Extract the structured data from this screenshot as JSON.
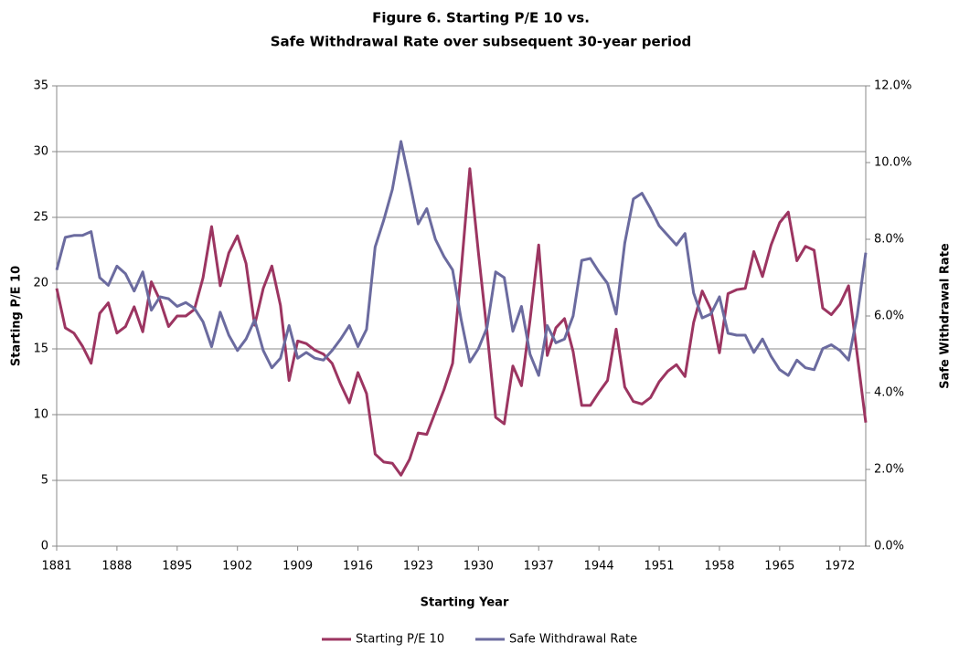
{
  "chart_data": {
    "type": "line",
    "title": "Figure 6.  Starting P/E 10 vs.",
    "subtitle": "Safe Withdrawal Rate over subsequent 30-year period",
    "x_label": "Starting Year",
    "y_label": "Starting P/E 10",
    "y2_label": "Safe Withdrawal Rate",
    "x": [
      1881,
      1882,
      1883,
      1884,
      1885,
      1886,
      1887,
      1888,
      1889,
      1890,
      1891,
      1892,
      1893,
      1894,
      1895,
      1896,
      1897,
      1898,
      1899,
      1900,
      1901,
      1902,
      1903,
      1904,
      1905,
      1906,
      1907,
      1908,
      1909,
      1910,
      1911,
      1912,
      1913,
      1914,
      1915,
      1916,
      1917,
      1918,
      1919,
      1920,
      1921,
      1922,
      1923,
      1924,
      1925,
      1926,
      1927,
      1928,
      1929,
      1930,
      1931,
      1932,
      1933,
      1934,
      1935,
      1936,
      1937,
      1938,
      1939,
      1940,
      1941,
      1942,
      1943,
      1944,
      1945,
      1946,
      1947,
      1948,
      1949,
      1950,
      1951,
      1952,
      1953,
      1954,
      1955,
      1956,
      1957,
      1958,
      1959,
      1960,
      1961,
      1962,
      1963,
      1964,
      1965,
      1966,
      1967,
      1968,
      1969,
      1970,
      1971,
      1972,
      1973,
      1974,
      1975
    ],
    "xlim": [
      1881,
      1975
    ],
    "xticks": [
      1881,
      1888,
      1895,
      1902,
      1909,
      1916,
      1923,
      1930,
      1937,
      1944,
      1951,
      1958,
      1965,
      1972
    ],
    "ylim": [
      0,
      35
    ],
    "yticks": [
      0,
      5,
      10,
      15,
      20,
      25,
      30,
      35
    ],
    "y2lim": [
      0,
      12
    ],
    "y2ticks": [
      {
        "value": 0,
        "label": "0.0%"
      },
      {
        "value": 2,
        "label": "2.0%"
      },
      {
        "value": 4,
        "label": "4.0%"
      },
      {
        "value": 6,
        "label": "6.0%"
      },
      {
        "value": 8,
        "label": "8.0%"
      },
      {
        "value": 10,
        "label": "10.0%"
      },
      {
        "value": 12,
        "label": "12.0%"
      }
    ],
    "grid": true,
    "legend": "bottom",
    "series": [
      {
        "name": "Starting P/E 10",
        "color": "#9c3561",
        "axis": "y",
        "values": [
          19.6,
          16.6,
          16.2,
          15.2,
          13.9,
          17.7,
          18.5,
          16.2,
          16.7,
          18.2,
          16.3,
          20.1,
          18.7,
          16.7,
          17.5,
          17.5,
          18.0,
          20.4,
          24.3,
          19.8,
          22.3,
          23.6,
          21.5,
          16.8,
          19.6,
          21.3,
          18.3,
          12.6,
          15.6,
          15.4,
          14.9,
          14.6,
          13.9,
          12.3,
          10.9,
          13.2,
          11.6,
          7.0,
          6.4,
          6.3,
          5.4,
          6.6,
          8.6,
          8.5,
          10.2,
          11.9,
          13.9,
          21.0,
          28.7,
          22.3,
          16.3,
          9.8,
          9.3,
          13.7,
          12.2,
          17.2,
          22.9,
          14.5,
          16.6,
          17.3,
          14.8,
          10.7,
          10.7,
          11.7,
          12.6,
          16.5,
          12.1,
          11.0,
          10.8,
          11.3,
          12.5,
          13.3,
          13.8,
          12.9,
          17.0,
          19.4,
          18.0,
          14.7,
          19.2,
          19.5,
          19.6,
          22.4,
          20.5,
          22.9,
          24.6,
          25.4,
          21.7,
          22.8,
          22.5,
          18.1,
          17.6,
          18.4,
          19.8,
          14.6,
          9.4
        ]
      },
      {
        "name": "Safe Withdrawal Rate",
        "color": "#6b6b9f",
        "axis": "y2",
        "values": [
          7.2,
          8.05,
          8.1,
          8.1,
          8.2,
          7.0,
          6.8,
          7.3,
          7.1,
          6.65,
          7.15,
          6.15,
          6.5,
          6.45,
          6.25,
          6.35,
          6.2,
          5.85,
          5.2,
          6.1,
          5.5,
          5.1,
          5.4,
          5.9,
          5.1,
          4.65,
          4.9,
          5.75,
          4.9,
          5.05,
          4.9,
          4.85,
          5.1,
          5.4,
          5.75,
          5.2,
          5.65,
          7.8,
          8.5,
          9.3,
          10.55,
          9.5,
          8.4,
          8.8,
          8.0,
          7.55,
          7.2,
          5.9,
          4.8,
          5.15,
          5.7,
          7.15,
          7.0,
          5.6,
          6.25,
          5.0,
          4.45,
          5.75,
          5.3,
          5.4,
          6.0,
          7.45,
          7.5,
          7.15,
          6.85,
          6.05,
          7.9,
          9.05,
          9.2,
          8.8,
          8.35,
          8.1,
          7.85,
          8.15,
          6.6,
          5.95,
          6.05,
          6.5,
          5.55,
          5.5,
          5.5,
          5.05,
          5.4,
          4.95,
          4.6,
          4.45,
          4.85,
          4.65,
          4.6,
          5.15,
          5.25,
          5.1,
          4.85,
          6.0,
          7.65
        ]
      }
    ]
  }
}
